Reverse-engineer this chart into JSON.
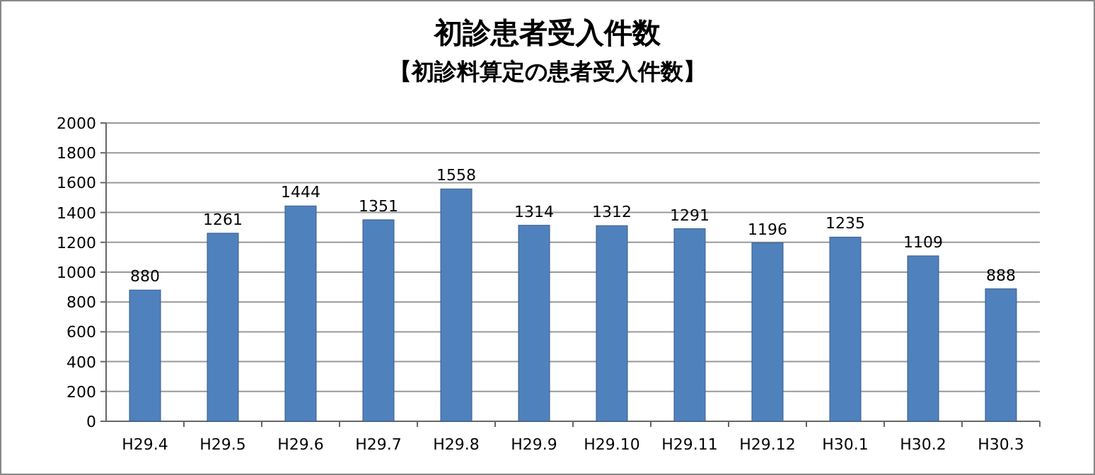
{
  "chart_data": {
    "type": "bar",
    "title": "初診患者受入件数",
    "subtitle": "【初診料算定の患者受入件数】",
    "categories": [
      "H29.4",
      "H29.5",
      "H29.6",
      "H29.7",
      "H29.8",
      "H29.9",
      "H29.10",
      "H29.11",
      "H29.12",
      "H30.1",
      "H30.2",
      "H30.3"
    ],
    "values": [
      880,
      1261,
      1444,
      1351,
      1558,
      1314,
      1312,
      1291,
      1196,
      1235,
      1109,
      888
    ],
    "color": "#4f81bd",
    "ylim": [
      0,
      2000
    ],
    "yticks": [
      0,
      200,
      400,
      600,
      800,
      1000,
      1200,
      1400,
      1600,
      1800,
      2000
    ],
    "grid": "y",
    "data_labels": true
  }
}
